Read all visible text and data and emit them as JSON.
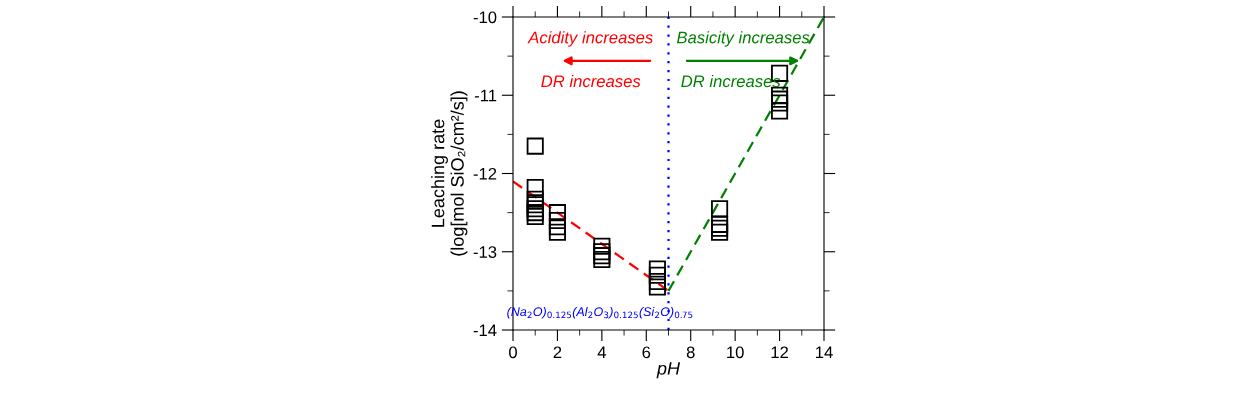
{
  "chart_data": {
    "type": "scatter",
    "xlabel": "pH",
    "ylabel": "Leaching rate\n(log[mol SiO₂/cm²/s])",
    "xlim": [
      0,
      14
    ],
    "ylim": [
      -14,
      -10
    ],
    "xticks": [
      0,
      2,
      4,
      6,
      8,
      10,
      12,
      14
    ],
    "yticks": [
      -14,
      -13,
      -12,
      -11,
      -10
    ],
    "grid": false,
    "legend": false,
    "series": [
      {
        "color": "#000000",
        "marker": "square",
        "x": [
          1,
          1,
          1,
          1,
          1,
          1,
          1,
          2,
          2,
          2,
          2,
          4,
          4,
          4,
          4,
          6.5,
          6.5,
          6.5,
          6.5,
          9.3,
          9.3,
          9.3,
          9.3,
          12,
          12,
          12,
          12,
          12
        ],
        "values": [
          -11.65,
          -12.18,
          -12.33,
          -12.4,
          -12.45,
          -12.5,
          -12.55,
          -12.5,
          -12.6,
          -12.68,
          -12.75,
          -12.93,
          -13.0,
          -13.05,
          -13.1,
          -13.22,
          -13.3,
          -13.38,
          -13.45,
          -12.45,
          -12.65,
          -12.7,
          -12.75,
          -10.72,
          -11.0,
          -11.05,
          -11.1,
          -11.2
        ]
      },
      {
        "type": "line",
        "color": "#ff0000",
        "line_style": "dashed",
        "marker": "none",
        "x": [
          0,
          7
        ],
        "values": [
          -12.1,
          -13.5
        ]
      },
      {
        "type": "line",
        "color": "#008000",
        "line_style": "dashed",
        "marker": "none",
        "x": [
          7,
          14
        ],
        "values": [
          -13.5,
          -10.0
        ]
      }
    ],
    "ref_lines": [
      {
        "axis": "x",
        "value": 7,
        "color": "#0000ff",
        "line_style": "dotted"
      }
    ],
    "annotations": [
      "Acidity increases",
      "DR increases",
      "Basicity increases",
      "DR increases",
      "(Na$_{2}$O)$_{0.125}$(Al$_{2}$O$_{3}$)$_{0.125}$(Si$_{2}$O)$_{0.75}$"
    ]
  }
}
